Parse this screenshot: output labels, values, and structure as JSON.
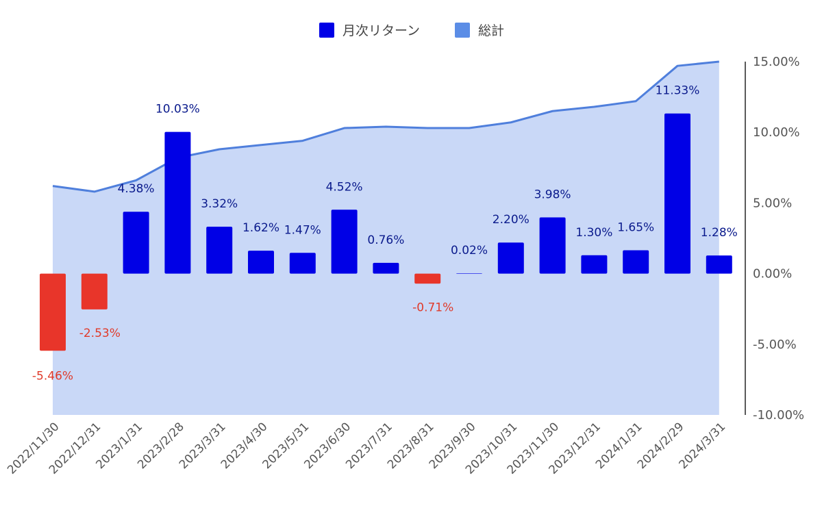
{
  "chart_data": {
    "type": "bar",
    "categories": [
      "2022/11/30",
      "2022/12/31",
      "2023/1/31",
      "2023/2/28",
      "2023/3/31",
      "2023/4/30",
      "2023/5/31",
      "2023/6/30",
      "2023/7/31",
      "2023/8/31",
      "2023/9/30",
      "2023/10/31",
      "2023/11/30",
      "2023/12/31",
      "2024/1/31",
      "2024/2/29",
      "2024/3/31"
    ],
    "series": [
      {
        "name": "月次リターン",
        "kind": "bar",
        "values": [
          -5.46,
          -2.53,
          4.38,
          10.03,
          3.32,
          1.62,
          1.47,
          4.52,
          0.76,
          -0.71,
          0.02,
          2.2,
          3.98,
          1.3,
          1.65,
          11.33,
          1.28
        ],
        "labels": [
          "-5.46%",
          "-2.53%",
          "4.38%",
          "10.03%",
          "3.32%",
          "1.62%",
          "1.47%",
          "4.52%",
          "0.76%",
          "-0.71%",
          "0.02%",
          "2.20%",
          "3.98%",
          "1.30%",
          "1.65%",
          "11.33%",
          "1.28%"
        ]
      },
      {
        "name": "総計",
        "kind": "area",
        "values": [
          6.2,
          5.8,
          6.6,
          8.2,
          8.8,
          9.1,
          9.4,
          10.3,
          10.4,
          10.3,
          10.3,
          10.7,
          11.5,
          11.8,
          12.2,
          14.7,
          15.0
        ]
      }
    ],
    "y_axis": {
      "position": "right",
      "ylim": [
        -10,
        15
      ],
      "ticks": [
        "15.00%",
        "10.00%",
        "5.00%",
        "0.00%",
        "-5.00%",
        "-10.00%"
      ]
    },
    "legend": "top-center",
    "grid": false,
    "colors": {
      "bar_positive": "#0000e6",
      "bar_negative": "#e8352a",
      "area_fill": "#c9d8f7",
      "area_line": "#4f7fdc",
      "label_positive": "#0a1a8c",
      "label_negative": "#e03a2a"
    }
  }
}
